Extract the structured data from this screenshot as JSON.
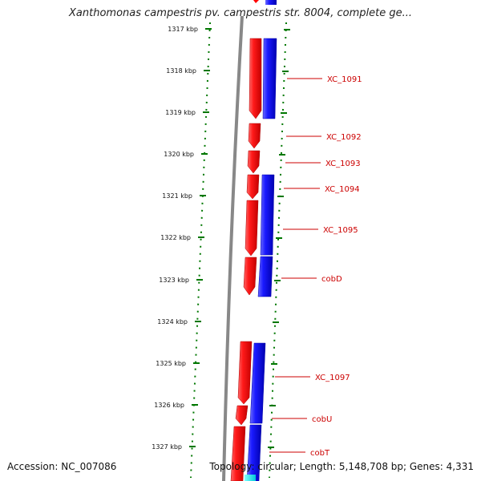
{
  "header": {
    "title": "Xanthomonas campestris pv. campestris str. 8004, complete ge..."
  },
  "ruler": {
    "ticks": [
      "1317 kbp",
      "1318 kbp",
      "1319 kbp",
      "1320 kbp",
      "1321 kbp",
      "1322 kbp",
      "1323 kbp",
      "1324 kbp",
      "1325 kbp",
      "1326 kbp",
      "1327 kbp"
    ]
  },
  "genes": [
    {
      "label": "XC_1091"
    },
    {
      "label": "XC_1092"
    },
    {
      "label": "XC_1093"
    },
    {
      "label": "XC_1094"
    },
    {
      "label": "XC_1095"
    },
    {
      "label": "cobD"
    },
    {
      "label": "XC_1097"
    },
    {
      "label": "cobU"
    },
    {
      "label": "cobT"
    }
  ],
  "colors": {
    "forward_strand": "#ff0000",
    "reverse_strand": "#0000ff",
    "backbone": "#888888",
    "tick": "#007700",
    "label": "#cc0000"
  },
  "footer": {
    "accession": "Accession: NC_007086",
    "summary": "Topology: circular; Length: 5,148,708 bp; Genes: 4,331"
  }
}
